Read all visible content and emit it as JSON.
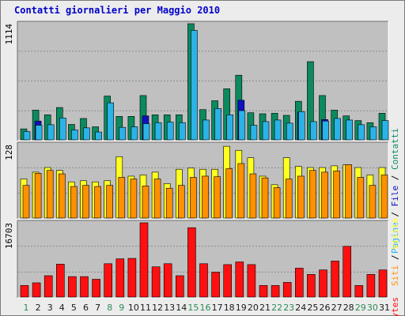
{
  "title": "Contatti giornalieri per Maggio 2010",
  "colors": {
    "pagine": "#0b8a5e",
    "file": "#1e90ff",
    "contatti": "#2bb3e8",
    "hits_dark": "#1010c0",
    "siti": "#ff9000",
    "visite": "#ffff22",
    "kbytes": "#ff1010",
    "day_weekday": "#1a1a1a",
    "day_weekend": "#2e8b57",
    "panel_bg": "#c0c0c0"
  },
  "chart_data": [
    {
      "type": "bar",
      "panel": "top",
      "ymax_label": "1114",
      "ylim": [
        0,
        1114
      ],
      "legend": [
        "Pagine",
        "File",
        "Contatti"
      ],
      "categories": [
        "1",
        "2",
        "3",
        "4",
        "5",
        "6",
        "7",
        "8",
        "9",
        "10",
        "11",
        "12",
        "13",
        "14",
        "15",
        "16",
        "17",
        "18",
        "19",
        "20",
        "21",
        "22",
        "23",
        "24",
        "25",
        "26",
        "27",
        "28",
        "29",
        "30",
        "31"
      ],
      "weekend_days": [
        "1",
        "8",
        "9",
        "15",
        "16",
        "22",
        "23",
        "29",
        "30"
      ],
      "series": [
        {
          "name": "Pagine",
          "values": [
            105,
            285,
            240,
            310,
            148,
            205,
            125,
            420,
            225,
            225,
            425,
            240,
            240,
            240,
            1114,
            290,
            375,
            490,
            620,
            260,
            250,
            255,
            235,
            370,
            750,
            425,
            285,
            230,
            185,
            165,
            255
          ]
        },
        {
          "name": "File",
          "values": [
            0,
            180,
            0,
            0,
            0,
            0,
            0,
            0,
            0,
            0,
            230,
            0,
            0,
            0,
            0,
            0,
            0,
            0,
            380,
            0,
            0,
            0,
            0,
            265,
            0,
            195,
            0,
            0,
            0,
            0,
            0
          ]
        },
        {
          "name": "Contatti",
          "values": [
            80,
            140,
            145,
            210,
            95,
            115,
            75,
            355,
            120,
            125,
            155,
            165,
            170,
            165,
            1050,
            190,
            300,
            240,
            280,
            140,
            175,
            190,
            160,
            270,
            175,
            180,
            205,
            190,
            145,
            125,
            185
          ]
        }
      ]
    },
    {
      "type": "bar",
      "panel": "middle",
      "ymax_label": "128",
      "ylim": [
        0,
        128
      ],
      "legend": [
        "Siti",
        "Visite"
      ],
      "categories": [
        "1",
        "2",
        "3",
        "4",
        "5",
        "6",
        "7",
        "8",
        "9",
        "10",
        "11",
        "12",
        "13",
        "14",
        "15",
        "16",
        "17",
        "18",
        "19",
        "20",
        "21",
        "22",
        "23",
        "24",
        "25",
        "26",
        "27",
        "28",
        "29",
        "30",
        "31"
      ],
      "series": [
        {
          "name": "Siti",
          "values": [
            57,
            78,
            83,
            77,
            55,
            57,
            55,
            57,
            71,
            68,
            56,
            68,
            52,
            57,
            71,
            73,
            72,
            86,
            95,
            77,
            70,
            53,
            68,
            73,
            83,
            80,
            82,
            93,
            71,
            57,
            75
          ]
        },
        {
          "name": "Visite",
          "values": [
            68,
            80,
            88,
            83,
            63,
            65,
            63,
            65,
            107,
            73,
            75,
            80,
            60,
            85,
            87,
            85,
            85,
            125,
            118,
            105,
            73,
            58,
            105,
            90,
            88,
            88,
            91,
            93,
            88,
            75,
            88
          ]
        }
      ]
    },
    {
      "type": "bar",
      "panel": "bottom",
      "ymax_label": "16703",
      "ylim": [
        0,
        16703
      ],
      "legend": [
        "KBytes"
      ],
      "categories": [
        "1",
        "2",
        "3",
        "4",
        "5",
        "6",
        "7",
        "8",
        "9",
        "10",
        "11",
        "12",
        "13",
        "14",
        "15",
        "16",
        "17",
        "18",
        "19",
        "20",
        "21",
        "22",
        "23",
        "24",
        "25",
        "26",
        "27",
        "28",
        "29",
        "30",
        "31"
      ],
      "series": [
        {
          "name": "KBytes",
          "values": [
            2600,
            3200,
            4800,
            7400,
            4600,
            4600,
            4000,
            7500,
            8600,
            8700,
            16703,
            6800,
            7500,
            4800,
            15600,
            7500,
            5600,
            7300,
            7900,
            7300,
            2600,
            2600,
            3300,
            6500,
            5100,
            6100,
            8100,
            11400,
            2600,
            5100,
            6100
          ]
        }
      ]
    }
  ]
}
